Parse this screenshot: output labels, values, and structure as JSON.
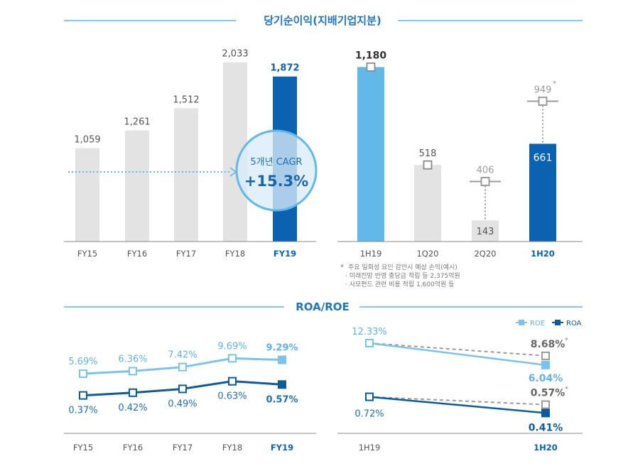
{
  "colors": {
    "gray_bar": "#e3e3e3",
    "light_blue": "#63b8ea",
    "dark_blue": "#0a62b1",
    "line_light": "#7cc2ee",
    "line_dark": "#0c5b9e",
    "dashed_gray": "#9b9b9b",
    "text_gray": "#555555",
    "label_light": "#5fb4e6",
    "rule": "#4aa3dc"
  },
  "section1": {
    "title": "당기순이익(지배기업지분)"
  },
  "section2": {
    "title": "ROA/ROE"
  },
  "cagr": {
    "label": "5개년 CAGR",
    "value": "+15.3%"
  },
  "footnotes": {
    "marker": "*",
    "lines": [
      "주요 일회성 요인 감안시 예상 손익(예시)",
      "· 미래전망 반영 충당금 적립 등 2,375억원",
      "· 사모펀드 관련 비용 적립 1,600억원 등"
    ]
  },
  "chart_data": [
    {
      "type": "bar",
      "title": "",
      "categories": [
        "FY15",
        "FY16",
        "FY17",
        "FY18",
        "FY19"
      ],
      "values": [
        1059,
        1261,
        1512,
        2033,
        1872
      ],
      "labels": [
        "1,059",
        "1,261",
        "1,512",
        "2,033",
        "1,872"
      ],
      "highlight_index": 4,
      "ylim": [
        0,
        2200
      ]
    },
    {
      "type": "bar",
      "title": "",
      "categories": [
        "1H19",
        "1Q20",
        "2Q20",
        "1H20"
      ],
      "values": [
        1180,
        518,
        143,
        661
      ],
      "labels": [
        "1,180",
        "518",
        "143",
        "661"
      ],
      "adjusted": [
        null,
        null,
        406,
        949
      ],
      "adjusted_labels": [
        "",
        "",
        "406",
        "949"
      ],
      "adjusted_marker": "*",
      "highlight_index": 3,
      "ylim": [
        0,
        1350
      ]
    },
    {
      "type": "line",
      "title": "",
      "categories": [
        "FY15",
        "FY16",
        "FY17",
        "FY18",
        "FY19"
      ],
      "series": [
        {
          "name": "ROE",
          "values": [
            5.69,
            6.36,
            7.42,
            9.69,
            9.29
          ],
          "labels": [
            "5.69%",
            "6.36%",
            "7.42%",
            "9.69%",
            "9.29%"
          ]
        },
        {
          "name": "ROA",
          "values": [
            0.37,
            0.42,
            0.49,
            0.63,
            0.57
          ],
          "labels": [
            "0.37%",
            "0.42%",
            "0.49%",
            "0.63%",
            "0.57%"
          ]
        }
      ]
    },
    {
      "type": "line",
      "title": "",
      "categories": [
        "1H19",
        "1H20"
      ],
      "series": [
        {
          "name": "ROE",
          "values": [
            12.33,
            6.04
          ],
          "labels": [
            "12.33%",
            "6.04%"
          ],
          "adjusted": [
            12.33,
            8.68
          ],
          "adjusted_label": "8.68%"
        },
        {
          "name": "ROA",
          "values": [
            0.72,
            0.41
          ],
          "labels": [
            "0.72%",
            "0.41%"
          ],
          "adjusted": [
            0.72,
            0.57
          ],
          "adjusted_label": "0.57%"
        }
      ],
      "adjusted_marker": "*",
      "legend": "top-right"
    }
  ]
}
